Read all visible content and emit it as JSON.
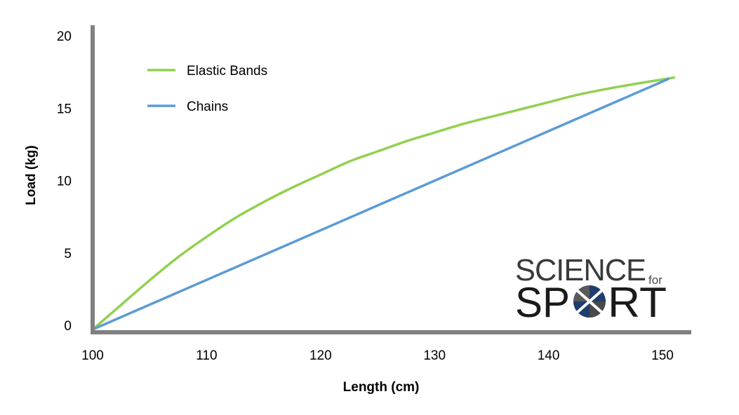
{
  "chart_data": {
    "type": "line",
    "title": "",
    "xlabel": "Length (cm)",
    "ylabel": "Load (kg)",
    "xlim": [
      100,
      152
    ],
    "ylim": [
      0,
      20
    ],
    "x_ticks": [
      "100",
      "110",
      "120",
      "130",
      "140",
      "150"
    ],
    "y_ticks": [
      "0",
      "5",
      "10",
      "15",
      "20"
    ],
    "grid": false,
    "legend_position": "top-left",
    "series": [
      {
        "name": "Elastic Bands",
        "color": "#92d050",
        "points": [
          [
            100,
            0
          ],
          [
            102.5,
            1.7
          ],
          [
            105,
            3.4
          ],
          [
            107.5,
            5.0
          ],
          [
            110,
            6.4
          ],
          [
            112.5,
            7.7
          ],
          [
            115,
            8.8
          ],
          [
            117.5,
            9.8
          ],
          [
            120,
            10.7
          ],
          [
            122.5,
            11.6
          ],
          [
            125,
            12.3
          ],
          [
            127.5,
            13.0
          ],
          [
            130,
            13.6
          ],
          [
            132.5,
            14.2
          ],
          [
            135,
            14.7
          ],
          [
            137.5,
            15.2
          ],
          [
            140,
            15.7
          ],
          [
            142.5,
            16.2
          ],
          [
            145,
            16.6
          ],
          [
            147.5,
            16.95
          ],
          [
            151,
            17.4
          ]
        ]
      },
      {
        "name": "Chains",
        "color": "#5b9bd5",
        "points": [
          [
            100,
            0
          ],
          [
            150.5,
            17.3
          ]
        ]
      }
    ]
  },
  "logo": {
    "line1": "SCIENCE",
    "for": "for",
    "sport_s": "SP",
    "sport_rt": "RT"
  }
}
